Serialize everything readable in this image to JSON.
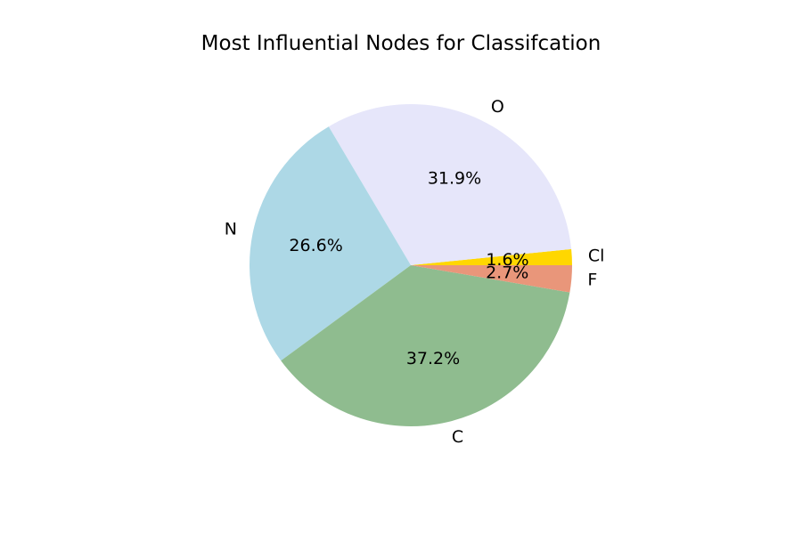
{
  "chart_data": {
    "type": "pie",
    "title": "Most Influential Nodes for Classifcation",
    "slices": [
      {
        "label": "Cl",
        "value": 1.6,
        "pct_label": "1.6%",
        "color": "#ffd700"
      },
      {
        "label": "O",
        "value": 31.9,
        "pct_label": "31.9%",
        "color": "#e6e6fa"
      },
      {
        "label": "N",
        "value": 26.6,
        "pct_label": "26.6%",
        "color": "#add8e6"
      },
      {
        "label": "C",
        "value": 37.2,
        "pct_label": "37.2%",
        "color": "#8fbc8f"
      },
      {
        "label": "F",
        "value": 2.7,
        "pct_label": "2.7%",
        "color": "#e9967a"
      }
    ],
    "start_angle_deg": 0,
    "direction": "counterclockwise",
    "legend": "none"
  }
}
